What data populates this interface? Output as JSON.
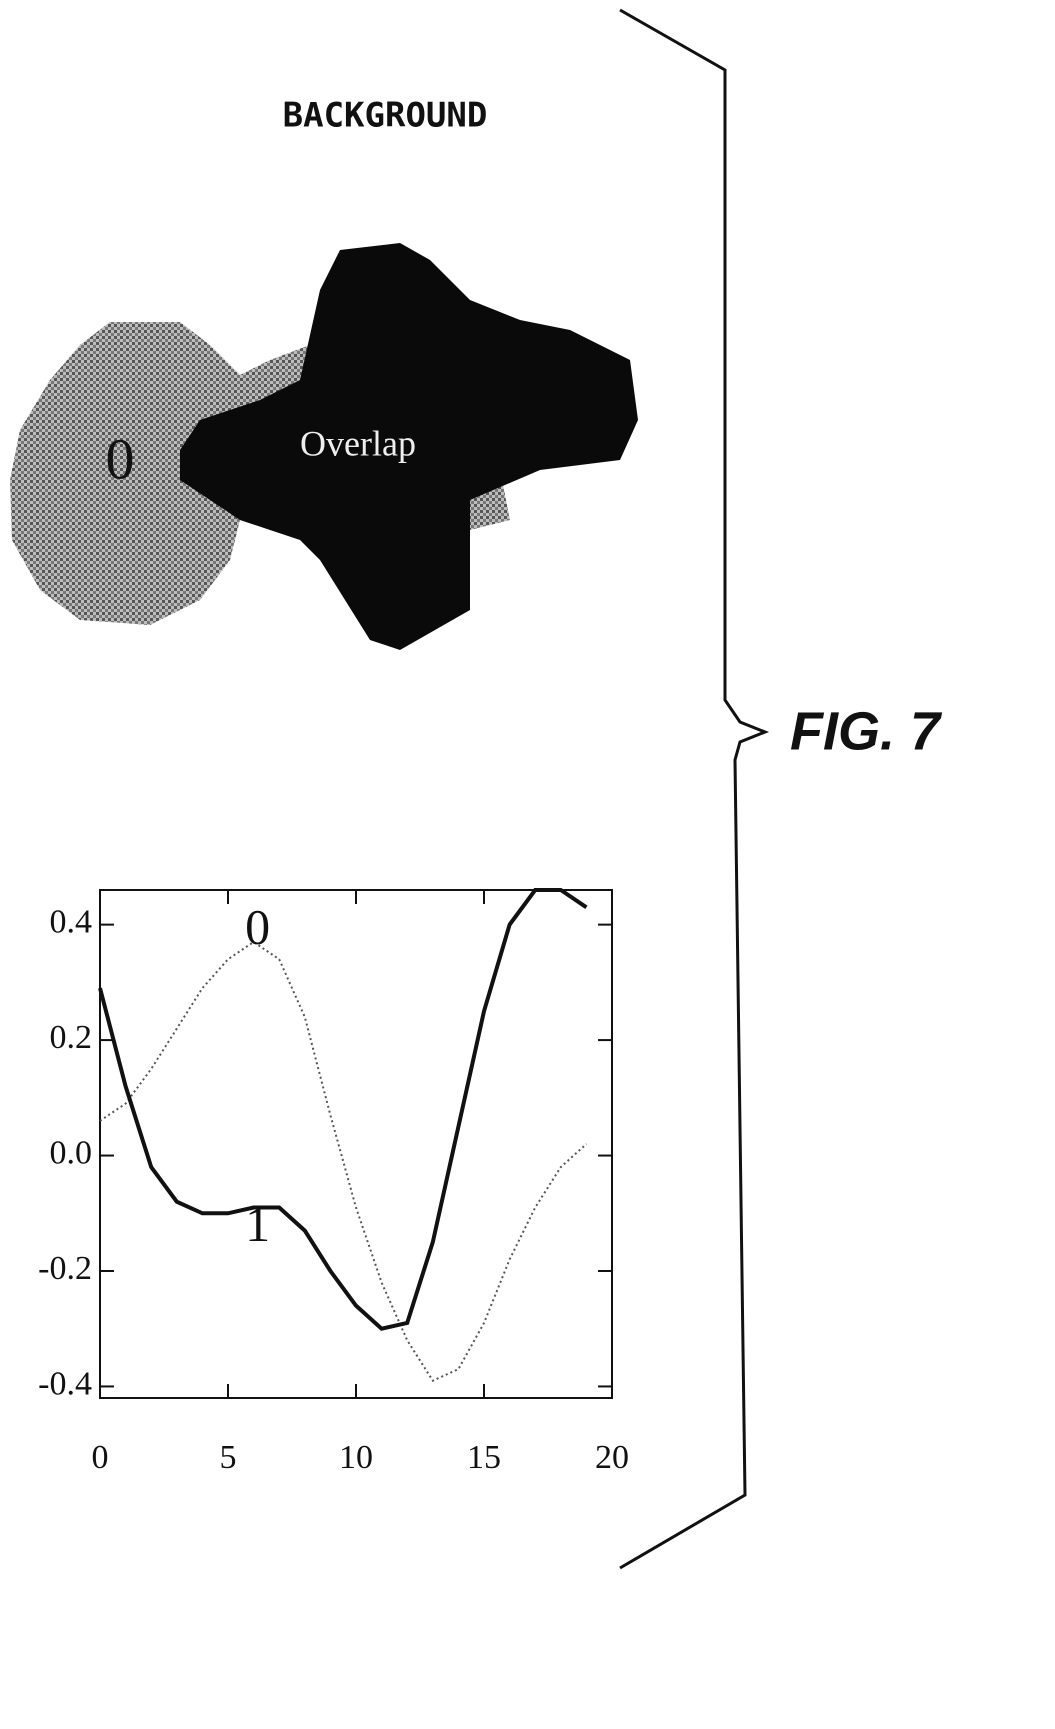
{
  "figure_label": "FIG. 7",
  "diagram": {
    "background_label": "BACKGROUND",
    "region_labels": [
      "0",
      "Overlap"
    ]
  },
  "chart_data": {
    "type": "line",
    "x": [
      0,
      1,
      2,
      3,
      4,
      5,
      6,
      7,
      8,
      9,
      10,
      11,
      12,
      13,
      14,
      15,
      16,
      17,
      18,
      19
    ],
    "series": [
      {
        "name": "0",
        "color": "#555555",
        "style": "dotted",
        "values": [
          0.06,
          0.09,
          0.15,
          0.22,
          0.29,
          0.34,
          0.37,
          0.34,
          0.24,
          0.07,
          -0.09,
          -0.22,
          -0.32,
          -0.39,
          -0.37,
          -0.29,
          -0.18,
          -0.09,
          -0.02,
          0.02
        ]
      },
      {
        "name": "1",
        "color": "#111111",
        "style": "solid",
        "values": [
          0.29,
          0.12,
          -0.02,
          -0.08,
          -0.1,
          -0.1,
          -0.09,
          -0.09,
          -0.13,
          -0.2,
          -0.26,
          -0.3,
          -0.29,
          -0.15,
          0.05,
          0.25,
          0.4,
          0.46,
          0.46,
          0.43
        ]
      }
    ],
    "xlim": [
      0,
      20
    ],
    "ylim": [
      -0.42,
      0.46
    ],
    "xticks": [
      0,
      5,
      10,
      15,
      20
    ],
    "yticks": [
      -0.4,
      -0.2,
      {
        "value": 0,
        "label": "0.0"
      },
      0.2,
      0.4
    ]
  }
}
